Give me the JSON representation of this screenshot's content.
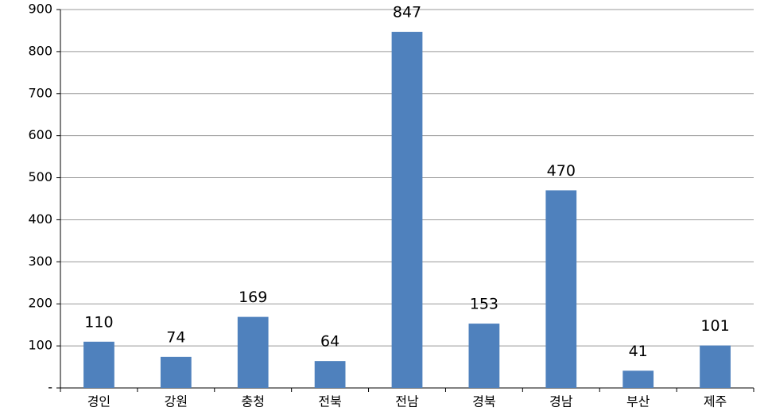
{
  "chart_data": {
    "type": "bar",
    "categories": [
      "경인",
      "강원",
      "충청",
      "전북",
      "전남",
      "경북",
      "경남",
      "부산",
      "제주"
    ],
    "values": [
      110,
      74,
      169,
      64,
      847,
      153,
      470,
      41,
      101
    ],
    "color": "#4f81bd",
    "ylim": [
      0,
      900
    ],
    "yticks": [
      {
        "value": 0,
        "label": "-"
      },
      100,
      200,
      300,
      400,
      500,
      600,
      700,
      800,
      900
    ],
    "grid": true
  }
}
